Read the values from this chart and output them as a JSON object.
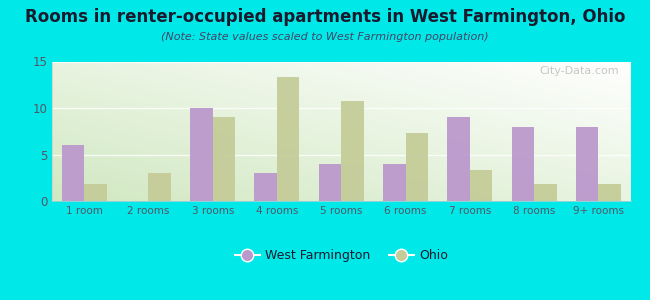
{
  "title": "Rooms in renter-occupied apartments in West Farmington, Ohio",
  "subtitle": "(Note: State values scaled to West Farmington population)",
  "categories": [
    "1 room",
    "2 rooms",
    "3 rooms",
    "4 rooms",
    "5 rooms",
    "6 rooms",
    "7 rooms",
    "8 rooms",
    "9+ rooms"
  ],
  "west_farmington": [
    6,
    0,
    10,
    3,
    4,
    4,
    9,
    8,
    8
  ],
  "ohio": [
    1.8,
    3,
    9,
    13.3,
    10.7,
    7.3,
    3.3,
    1.8,
    1.8
  ],
  "wf_color": "#bb99cc",
  "ohio_color": "#c5cc99",
  "bg_outer": "#00e8e8",
  "bg_plot_top_right": "#ffffff",
  "bg_plot_bottom_left": "#d4e8c8",
  "ylim": [
    0,
    15
  ],
  "yticks": [
    0,
    5,
    10,
    15
  ],
  "bar_width": 0.35,
  "watermark": "City-Data.com",
  "legend_wf": "West Farmington",
  "legend_ohio": "Ohio",
  "title_color": "#1a1a2e",
  "subtitle_color": "#444466",
  "tick_label_color": "#555566"
}
